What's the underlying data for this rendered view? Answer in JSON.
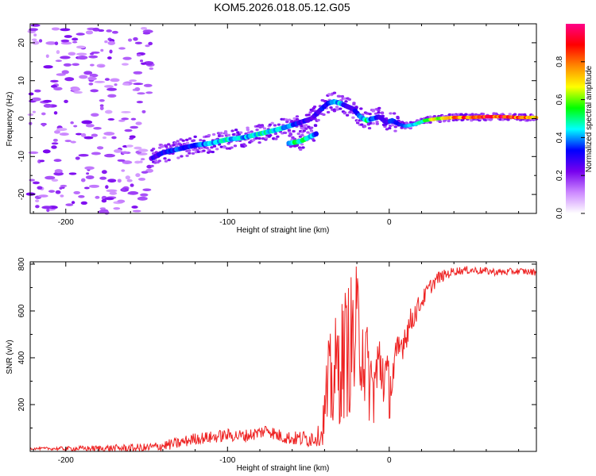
{
  "title": "KOM5.2026.018.05.12.G05",
  "chart_data": [
    {
      "type": "heatmap",
      "name": "spectrogram",
      "xlabel": "Height of straight line (km)",
      "ylabel": "Frequency (Hz)",
      "xlim": [
        -222,
        91
      ],
      "ylim": [
        -25,
        25
      ],
      "xticks": [
        -200,
        -100,
        0
      ],
      "yticks": [
        -20,
        -10,
        0,
        10,
        20
      ],
      "colorbar": {
        "label": "Normalized spectral amplitude",
        "range": [
          0,
          1
        ],
        "ticks": [
          "0.0",
          "0.2",
          "0.4",
          "0.6",
          "0.8"
        ],
        "colors": [
          "#ffffff",
          "#cc88ff",
          "#7700ee",
          "#0000ff",
          "#00ffff",
          "#00ff00",
          "#ffff00",
          "#ff8800",
          "#ff0000",
          "#ff0088"
        ]
      },
      "ridge": {
        "x": [
          -147,
          -140,
          -130,
          -120,
          -110,
          -100,
          -90,
          -80,
          -70,
          -62,
          -55,
          -48,
          -42,
          -38,
          -34,
          -30,
          -26,
          -22,
          -18,
          -14,
          -10,
          -6,
          -2,
          2,
          6,
          10,
          16,
          22,
          30,
          40,
          50,
          60,
          70,
          80,
          91
        ],
        "y": [
          -10.5,
          -9,
          -8,
          -7,
          -6.5,
          -5.5,
          -5,
          -4,
          -3,
          -2,
          -1,
          0,
          2.5,
          4,
          4.5,
          4,
          3.2,
          2.5,
          0.5,
          -0.5,
          0,
          0.5,
          -1,
          -0.5,
          -1.5,
          -2,
          -1.5,
          -0.5,
          0,
          0.3,
          0.3,
          0.5,
          0.5,
          0.3,
          0.3
        ],
        "amplitude": [
          0.25,
          0.3,
          0.35,
          0.35,
          0.4,
          0.45,
          0.4,
          0.45,
          0.45,
          0.4,
          0.3,
          0.25,
          0.3,
          0.35,
          0.45,
          0.4,
          0.3,
          0.25,
          0.4,
          0.5,
          0.35,
          0.3,
          0.25,
          0.35,
          0.3,
          0.35,
          0.45,
          0.55,
          0.65,
          0.75,
          0.82,
          0.85,
          0.88,
          0.8,
          0.75
        ]
      },
      "branch": {
        "x": [
          -62,
          -55,
          -50,
          -45
        ],
        "y": [
          -6.5,
          -6,
          -5,
          -4
        ],
        "amplitude": [
          0.45,
          0.5,
          0.45,
          0.35
        ]
      }
    },
    {
      "type": "line",
      "name": "snr",
      "xlabel": "Height of straight line (km)",
      "ylabel": "SNR (v/v)",
      "xlim": [
        -222,
        91
      ],
      "ylim": [
        0,
        810
      ],
      "xticks": [
        -200,
        -100,
        0
      ],
      "yticks": [
        200,
        400,
        600,
        800
      ],
      "color": "#ee2222",
      "envelope": {
        "x": [
          -222,
          -200,
          -150,
          -130,
          -125,
          -120,
          -110,
          -100,
          -90,
          -80,
          -75,
          -70,
          -60,
          -50,
          -42,
          -38,
          -35,
          -30,
          -25,
          -20,
          -17,
          -15,
          -12,
          -10,
          -6,
          -3,
          0,
          3,
          6,
          10,
          15,
          20,
          25,
          30,
          40,
          50,
          60,
          70,
          80,
          91
        ],
        "y": [
          12,
          12,
          14,
          35,
          45,
          55,
          60,
          70,
          65,
          80,
          95,
          70,
          55,
          55,
          70,
          250,
          300,
          380,
          450,
          470,
          520,
          380,
          300,
          260,
          380,
          330,
          260,
          350,
          430,
          500,
          580,
          640,
          700,
          740,
          770,
          775,
          770,
          765,
          770,
          765
        ]
      },
      "noise_amp": {
        "x": [
          -222,
          -130,
          -60,
          -42,
          -38,
          -20,
          -12,
          -3,
          5,
          20,
          40,
          91
        ],
        "y": [
          4,
          25,
          30,
          45,
          220,
          330,
          180,
          160,
          90,
          40,
          18,
          14
        ]
      }
    }
  ]
}
